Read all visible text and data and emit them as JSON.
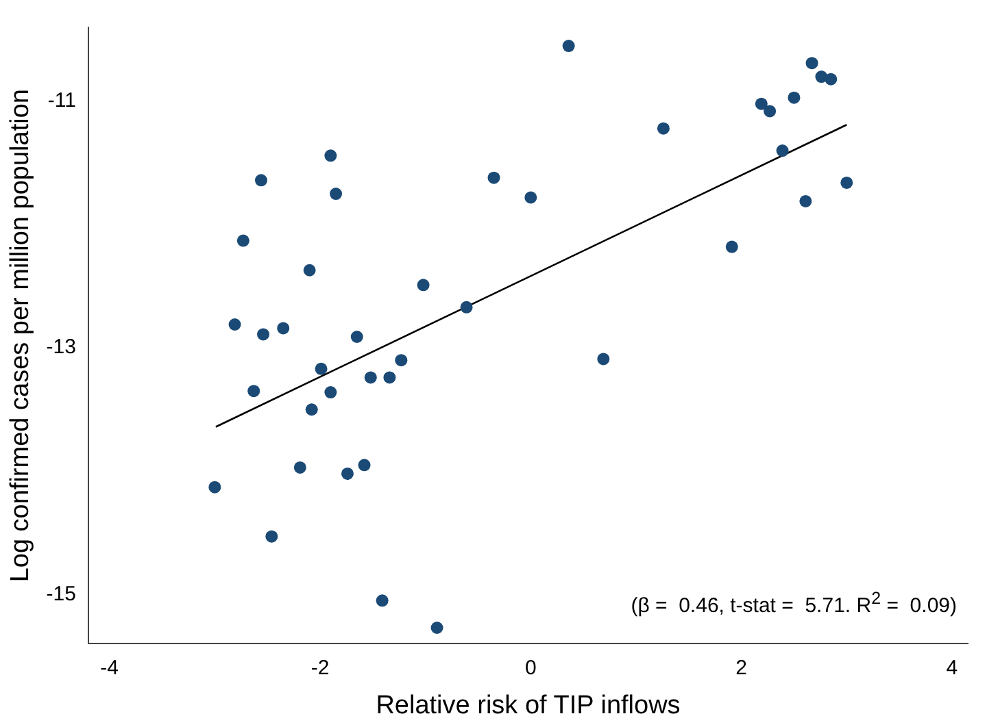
{
  "chart_data": {
    "type": "scatter",
    "xlabel": "Relative risk of TIP inflows",
    "ylabel": "Log confirmed cases per million population",
    "xlim": [
      -4.2,
      4.15
    ],
    "ylim": [
      -15.4,
      -10.4
    ],
    "xticks": [
      -4,
      -2,
      0,
      2,
      4
    ],
    "yticks": [
      -15,
      -13,
      -11
    ],
    "grid": false,
    "legend": false,
    "marker": "circle",
    "annotations": [
      "(β =  0.46, t-stat =  5.71. R$^{2}$ =  0.09)"
    ],
    "series": [
      {
        "color": "#1b4a76",
        "x": [
          0.36,
          2.67,
          2.76,
          2.85,
          2.19,
          2.27,
          2.5,
          1.26,
          2.39,
          3.0,
          2.61,
          -0.35,
          0.0,
          1.91,
          -1.02,
          -0.61,
          0.69,
          -1.23,
          -1.34,
          -1.9,
          -2.56,
          -1.85,
          -2.73,
          -2.1,
          -2.81,
          -2.54,
          -2.35,
          -1.65,
          -1.99,
          -1.52,
          -2.63,
          -1.9,
          -2.08,
          -3.0,
          -2.19,
          -1.74,
          -1.58,
          -2.46,
          -1.41,
          -0.89
        ],
        "values": [
          -10.55,
          -10.69,
          -10.8,
          -10.82,
          -11.02,
          -11.08,
          -10.97,
          -11.22,
          -11.4,
          -11.66,
          -11.81,
          -11.62,
          -11.78,
          -12.18,
          -12.49,
          -12.67,
          -13.09,
          -13.1,
          -13.24,
          -11.44,
          -11.64,
          -11.75,
          -12.13,
          -12.37,
          -12.81,
          -12.89,
          -12.84,
          -12.91,
          -13.17,
          -13.24,
          -13.35,
          -13.36,
          -13.5,
          -14.13,
          -13.97,
          -14.02,
          -13.95,
          -14.53,
          -15.05,
          -15.27
        ]
      },
      {
        "type": "line",
        "color": "#000000",
        "marker": "none",
        "line_style": "solid",
        "x": [
          -2.99,
          3.0
        ],
        "values": [
          -13.64,
          -11.19
        ]
      }
    ]
  }
}
